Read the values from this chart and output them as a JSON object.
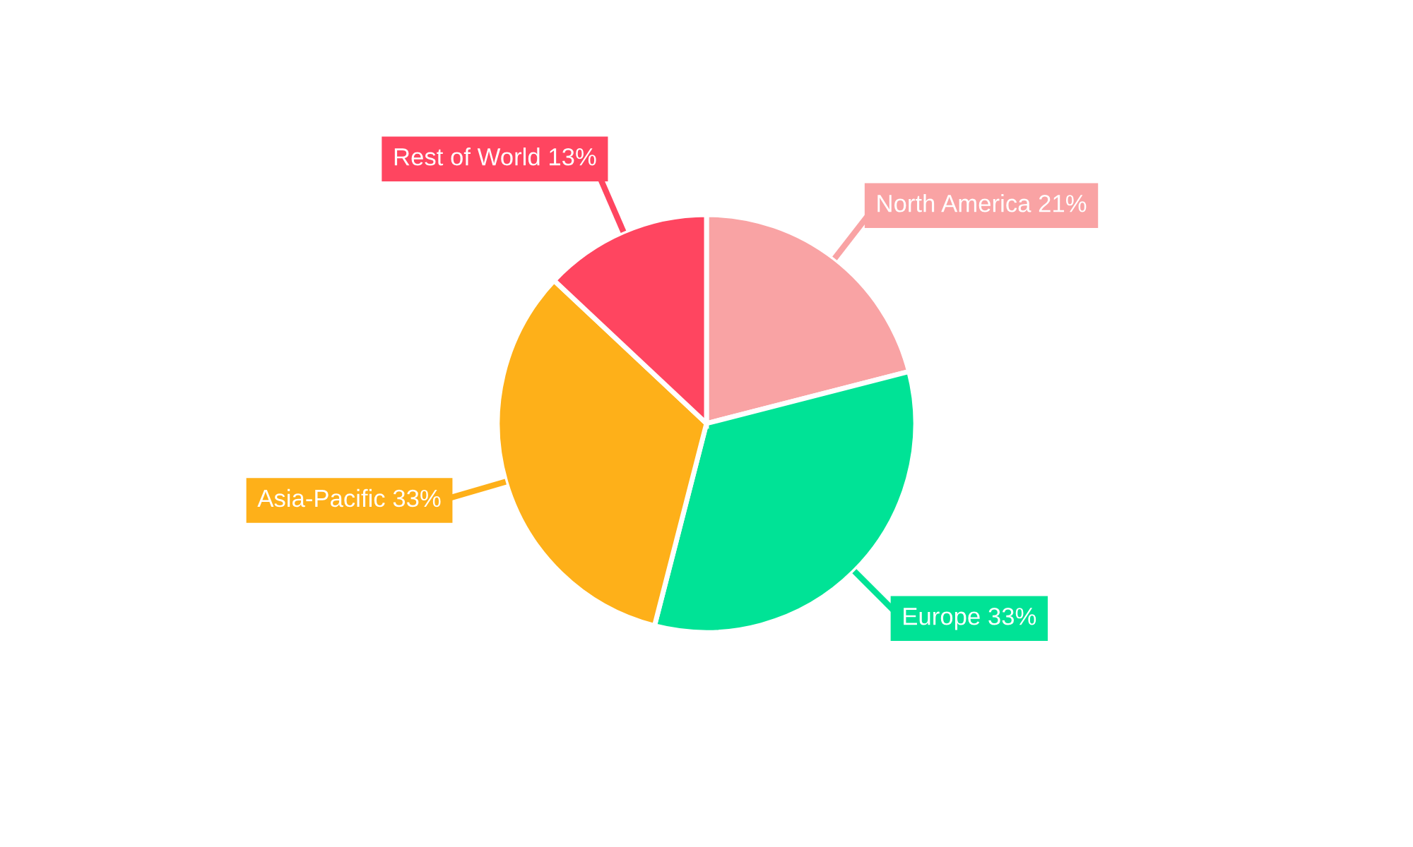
{
  "chart_data": {
    "type": "pie",
    "categories": [
      "North America",
      "Europe",
      "Asia-Pacific",
      "Rest of World"
    ],
    "values": [
      21,
      33,
      33,
      13
    ],
    "value_labels": [
      "21%",
      "33%",
      "33%",
      "13%"
    ],
    "colors": [
      "#f9a3a4",
      "#00e396",
      "#feb019",
      "#ff4560"
    ],
    "legend": false
  }
}
